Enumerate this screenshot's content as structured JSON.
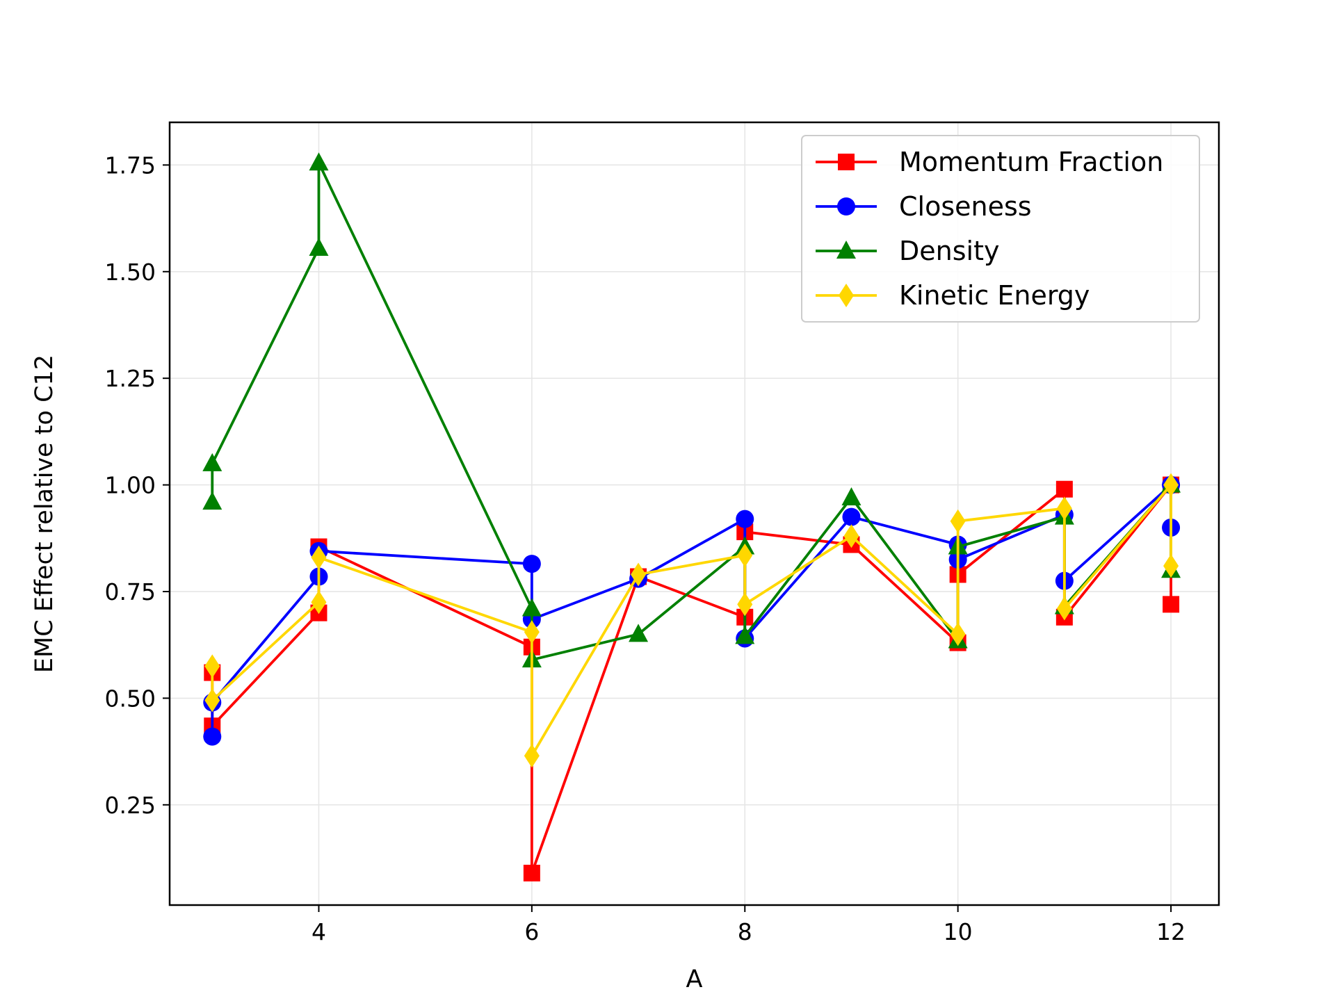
{
  "chart_data": {
    "type": "line",
    "title": "",
    "xlabel": "A",
    "ylabel": "EMC Effect relative to C12",
    "xlim": [
      2.6,
      12.45
    ],
    "ylim": [
      0.015,
      1.85
    ],
    "xticks": [
      4,
      6,
      8,
      10,
      12
    ],
    "yticks": [
      0.25,
      0.5,
      0.75,
      1.0,
      1.25,
      1.5,
      1.75
    ],
    "ytick_labels": [
      "0.25",
      "0.50",
      "0.75",
      "1.00",
      "1.25",
      "1.50",
      "1.75"
    ],
    "grid": true,
    "legend_position": "top-right",
    "series": [
      {
        "name": "Momentum Fraction",
        "color": "#ff0000",
        "marker": "square",
        "x": [
          3,
          3,
          4,
          4,
          6,
          6,
          7,
          8,
          8,
          9,
          10,
          10,
          11,
          11,
          12,
          12
        ],
        "y": [
          0.56,
          0.435,
          0.7,
          0.855,
          0.62,
          0.09,
          0.785,
          0.69,
          0.89,
          0.86,
          0.63,
          0.79,
          0.99,
          0.69,
          1.0,
          0.72
        ]
      },
      {
        "name": "Closeness",
        "color": "#0000ff",
        "marker": "circle",
        "x": [
          3,
          3,
          4,
          4,
          6,
          6,
          7,
          8,
          8,
          9,
          10,
          10,
          11,
          11,
          12,
          12
        ],
        "y": [
          0.41,
          0.49,
          0.785,
          0.845,
          0.815,
          0.685,
          0.78,
          0.92,
          0.64,
          0.925,
          0.86,
          0.825,
          0.93,
          0.775,
          1.0,
          0.9
        ]
      },
      {
        "name": "Density",
        "color": "#008000",
        "marker": "triangle",
        "x": [
          3,
          3,
          4,
          4,
          6,
          6,
          7,
          8,
          8,
          9,
          10,
          10,
          11,
          11,
          12,
          12
        ],
        "y": [
          0.96,
          1.05,
          1.555,
          1.755,
          0.71,
          0.59,
          0.65,
          0.855,
          0.645,
          0.97,
          0.635,
          0.855,
          0.925,
          0.715,
          1.0,
          0.8
        ]
      },
      {
        "name": "Kinetic Energy",
        "color": "#ffd700",
        "marker": "diamond",
        "x": [
          3,
          3,
          4,
          4,
          6,
          6,
          7,
          8,
          8,
          9,
          10,
          10,
          11,
          11,
          12,
          12
        ],
        "y": [
          0.575,
          0.495,
          0.725,
          0.83,
          0.655,
          0.365,
          0.79,
          0.835,
          0.72,
          0.88,
          0.65,
          0.915,
          0.945,
          0.71,
          1.0,
          0.81
        ]
      }
    ]
  }
}
